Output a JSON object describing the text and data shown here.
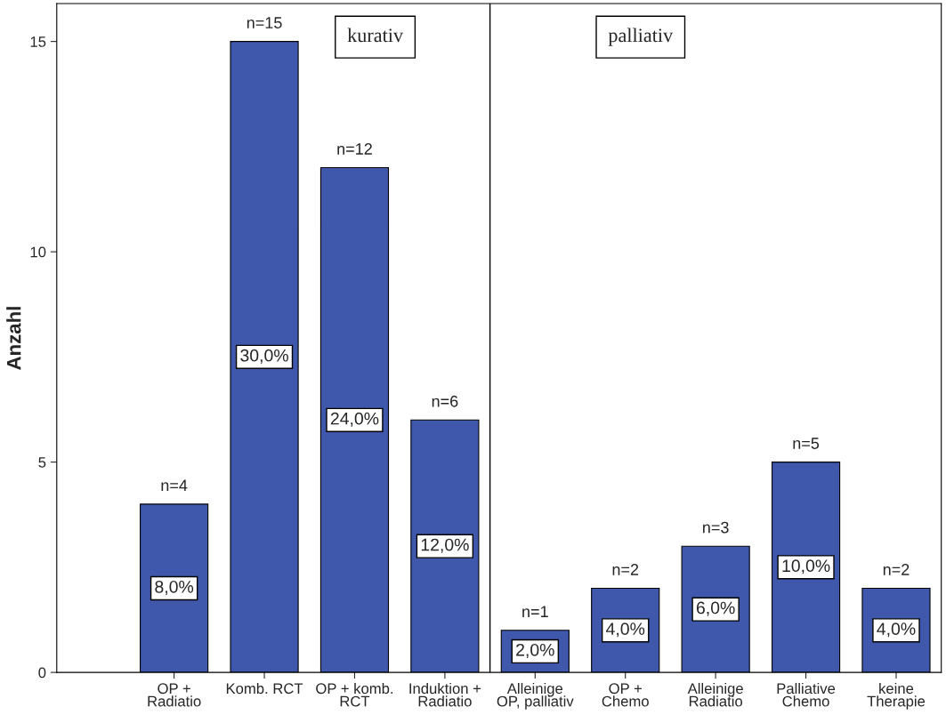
{
  "chart_data": {
    "type": "bar",
    "ylabel": "Anzahl",
    "categories": [
      "OP +\nRadiatio",
      "Komb. RCT",
      "OP + komb.\nRCT",
      "Induktion +\nRadiatio",
      "Alleinige\nOP, palliativ",
      "OP +\nChemo",
      "Alleinige\nRadiatio",
      "Palliative\nChemo",
      "keine\nTherapie"
    ],
    "values": [
      4,
      15,
      12,
      6,
      1,
      2,
      3,
      5,
      2
    ],
    "value_labels": [
      "n=4",
      "n=15",
      "n=12",
      "n=6",
      "n=1",
      "n=2",
      "n=3",
      "n=5",
      "n=2"
    ],
    "color": "#3f58ac",
    "ylim": [
      0,
      15.9
    ],
    "yticks": [
      0,
      5,
      10,
      15
    ],
    "grid": false,
    "legend": false,
    "annotations": [
      "kurativ",
      "palliativ",
      "8,0%",
      "30,0%",
      "24,0%",
      "12,0%",
      "2,0%",
      "4,0%",
      "6,0%",
      "10,0%",
      "4,0%"
    ]
  }
}
